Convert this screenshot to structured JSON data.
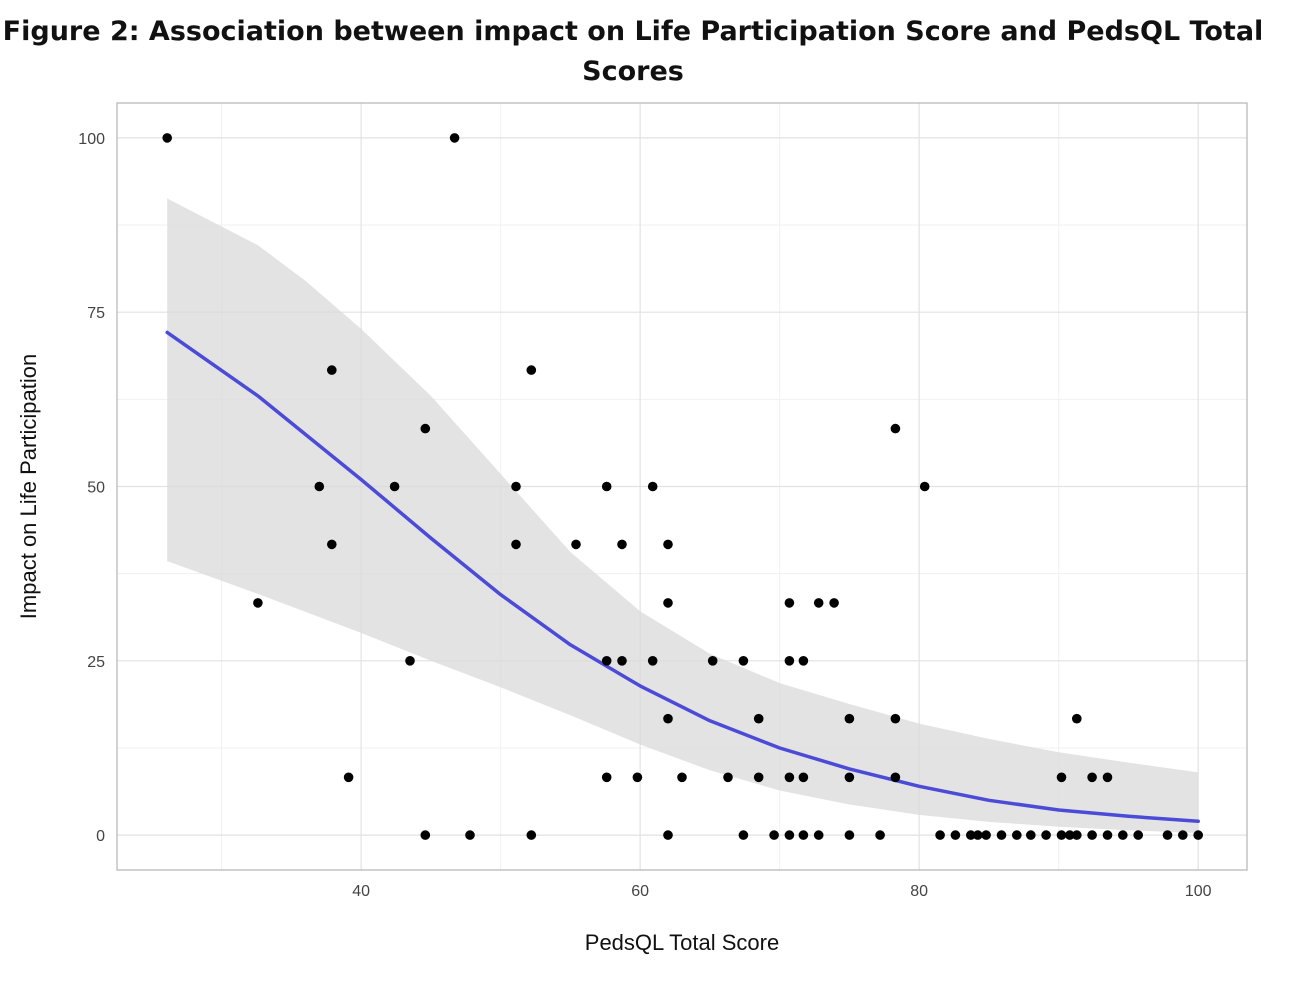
{
  "title": {
    "line1": "Figure 2: Association between impact on Life Participation Score and PedsQL Total",
    "line2": "Scores"
  },
  "chart_data": {
    "type": "scatter",
    "title": "Figure 2: Association between impact on Life Participation Score and PedsQL Total Scores",
    "xlabel": "PedsQL Total Score",
    "ylabel": "Impact on Life Participation",
    "xlim": [
      22.5,
      103.5
    ],
    "ylim": [
      -5,
      105
    ],
    "x_ticks": [
      40,
      60,
      80,
      100
    ],
    "y_ticks": [
      0,
      25,
      50,
      75,
      100
    ],
    "grid": true,
    "legend": "none",
    "colors": {
      "points": "#000000",
      "fit_line": "#4b4bd8",
      "confidence_band": "#d9d9d9",
      "grid_major": "#e2e2e2",
      "grid_minor": "#f1f1f1",
      "panel_border": "#b5b5b5"
    },
    "points": [
      [
        26.1,
        100
      ],
      [
        46.7,
        100
      ],
      [
        37.9,
        66.7
      ],
      [
        52.2,
        66.7
      ],
      [
        44.6,
        58.3
      ],
      [
        78.3,
        58.3
      ],
      [
        37.0,
        50
      ],
      [
        42.4,
        50
      ],
      [
        51.1,
        50
      ],
      [
        57.6,
        50
      ],
      [
        60.9,
        50
      ],
      [
        80.4,
        50
      ],
      [
        37.9,
        41.7
      ],
      [
        51.1,
        41.7
      ],
      [
        55.4,
        41.7
      ],
      [
        58.7,
        41.7
      ],
      [
        62.0,
        41.7
      ],
      [
        32.6,
        33.3
      ],
      [
        62.0,
        33.3
      ],
      [
        70.7,
        33.3
      ],
      [
        72.8,
        33.3
      ],
      [
        73.9,
        33.3
      ],
      [
        43.5,
        25
      ],
      [
        57.6,
        25
      ],
      [
        58.7,
        25
      ],
      [
        60.9,
        25
      ],
      [
        65.2,
        25
      ],
      [
        67.4,
        25
      ],
      [
        70.7,
        25
      ],
      [
        71.7,
        25
      ],
      [
        62.0,
        16.7
      ],
      [
        68.5,
        16.7
      ],
      [
        75.0,
        16.7
      ],
      [
        78.3,
        16.7
      ],
      [
        91.3,
        16.7
      ],
      [
        39.1,
        8.3
      ],
      [
        57.6,
        8.3
      ],
      [
        59.8,
        8.3
      ],
      [
        63.0,
        8.3
      ],
      [
        66.3,
        8.3
      ],
      [
        68.5,
        8.3
      ],
      [
        70.7,
        8.3
      ],
      [
        71.7,
        8.3
      ],
      [
        75.0,
        8.3
      ],
      [
        78.3,
        8.3
      ],
      [
        90.2,
        8.3
      ],
      [
        92.4,
        8.3
      ],
      [
        93.5,
        8.3
      ],
      [
        44.6,
        0
      ],
      [
        47.8,
        0
      ],
      [
        52.2,
        0
      ],
      [
        62.0,
        0
      ],
      [
        67.4,
        0
      ],
      [
        69.6,
        0
      ],
      [
        70.7,
        0
      ],
      [
        71.7,
        0
      ],
      [
        72.8,
        0
      ],
      [
        75.0,
        0
      ],
      [
        77.2,
        0
      ],
      [
        81.5,
        0
      ],
      [
        82.6,
        0
      ],
      [
        83.7,
        0
      ],
      [
        84.2,
        0
      ],
      [
        84.8,
        0
      ],
      [
        85.9,
        0
      ],
      [
        87.0,
        0
      ],
      [
        88.0,
        0
      ],
      [
        89.1,
        0
      ],
      [
        90.2,
        0
      ],
      [
        90.8,
        0
      ],
      [
        91.3,
        0
      ],
      [
        92.4,
        0
      ],
      [
        93.5,
        0
      ],
      [
        94.6,
        0
      ],
      [
        95.7,
        0
      ],
      [
        97.8,
        0
      ],
      [
        98.9,
        0
      ],
      [
        100,
        0
      ]
    ],
    "fit_curve": [
      [
        26.1,
        72.1
      ],
      [
        32.6,
        63.0
      ],
      [
        40,
        51.0
      ],
      [
        45,
        42.6
      ],
      [
        50,
        34.5
      ],
      [
        55,
        27.3
      ],
      [
        60,
        21.4
      ],
      [
        65,
        16.4
      ],
      [
        70,
        12.5
      ],
      [
        75,
        9.5
      ],
      [
        80,
        7.0
      ],
      [
        85,
        5.0
      ],
      [
        90,
        3.6
      ],
      [
        95,
        2.7
      ],
      [
        100,
        2.0
      ]
    ],
    "confidence_band_upper": [
      [
        26.1,
        91.3
      ],
      [
        32.6,
        84.6
      ],
      [
        36,
        79.5
      ],
      [
        40,
        72.6
      ],
      [
        45,
        63.0
      ],
      [
        50,
        51.8
      ],
      [
        55,
        40.6
      ],
      [
        60,
        32.1
      ],
      [
        65,
        26.0
      ],
      [
        70,
        21.8
      ],
      [
        75,
        18.8
      ],
      [
        80,
        16.0
      ],
      [
        85,
        13.8
      ],
      [
        90,
        11.9
      ],
      [
        95,
        10.4
      ],
      [
        100,
        9.0
      ]
    ],
    "confidence_band_lower": [
      [
        26.1,
        39.3
      ],
      [
        32.6,
        34.6
      ],
      [
        40,
        29.0
      ],
      [
        45,
        25.0
      ],
      [
        50,
        21.2
      ],
      [
        55,
        17.2
      ],
      [
        60,
        13.0
      ],
      [
        65,
        9.3
      ],
      [
        70,
        6.4
      ],
      [
        75,
        4.4
      ],
      [
        80,
        2.9
      ],
      [
        85,
        1.9
      ],
      [
        90,
        1.2
      ],
      [
        95,
        0.7
      ],
      [
        100,
        0.3
      ]
    ]
  }
}
